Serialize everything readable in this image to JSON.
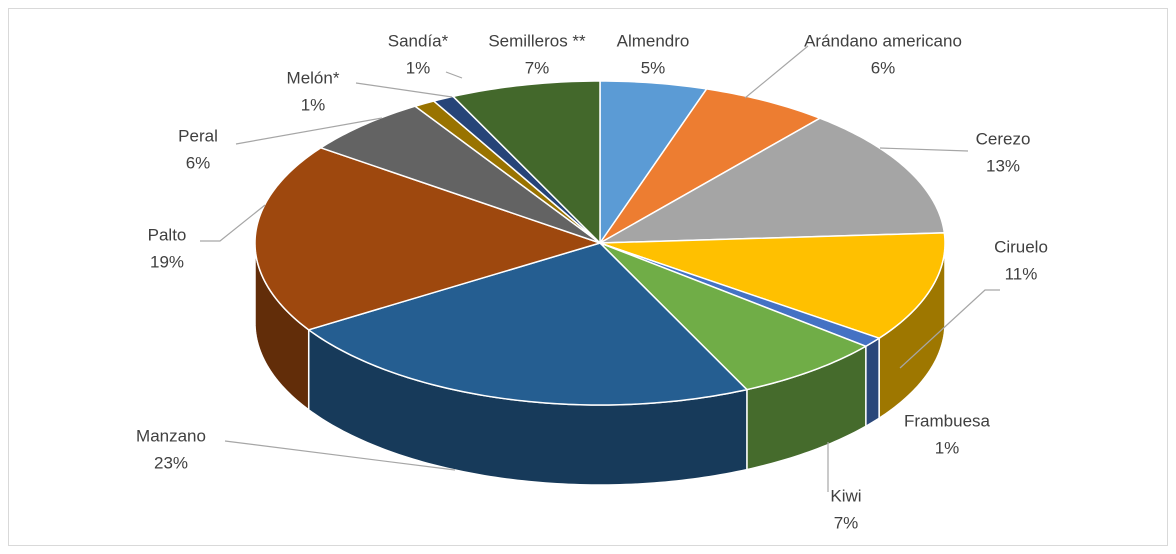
{
  "chart_data": {
    "type": "pie3d",
    "categories": [
      "Almendro",
      "Arándano americano",
      "Cerezo",
      "Ciruelo",
      "Frambuesa",
      "Kiwi",
      "Manzano",
      "Palto",
      "Peral",
      "Melón*",
      "Sandía*",
      "Semilleros **"
    ],
    "values": [
      5,
      6,
      13,
      11,
      1,
      7,
      23,
      19,
      6,
      1,
      1,
      7
    ],
    "value_labels": [
      "5%",
      "6%",
      "13%",
      "11%",
      "1%",
      "7%",
      "23%",
      "19%",
      "6%",
      "1%",
      "1%",
      "7%"
    ],
    "colors": [
      "#5b9bd5",
      "#ed7d31",
      "#a5a5a5",
      "#ffc000",
      "#4472c4",
      "#70ad47",
      "#255e91",
      "#9e480e",
      "#636363",
      "#997300",
      "#264478",
      "#43682b"
    ]
  }
}
